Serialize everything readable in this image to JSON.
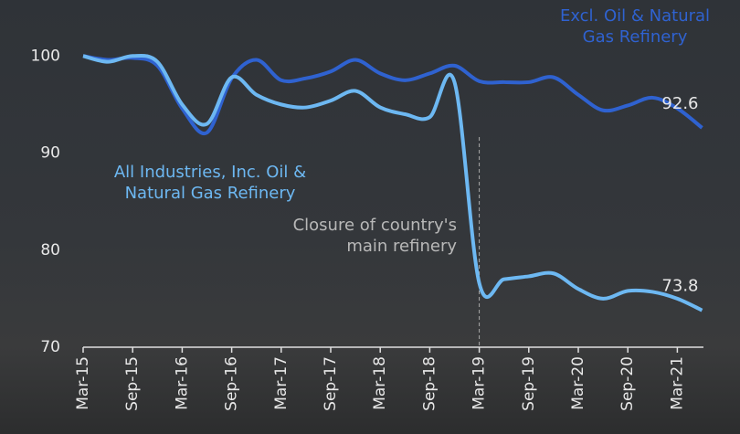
{
  "chart_data": {
    "type": "line",
    "categories": [
      "Mar-15",
      null,
      "Sep-15",
      null,
      "Mar-16",
      null,
      "Sep-16",
      null,
      "Mar-17",
      null,
      "Sep-17",
      null,
      "Mar-18",
      null,
      "Sep-18",
      null,
      "Mar-19",
      null,
      "Sep-19",
      null,
      "Mar-20",
      null,
      "Sep-20",
      null,
      "Mar-21",
      null
    ],
    "series": [
      {
        "name": "Excl. Oil & Natural Gas Refinery",
        "color": "#2f62d0",
        "values": [
          100,
          99.6,
          99.8,
          99,
          94.6,
          92.1,
          97.7,
          99.6,
          97.5,
          97.7,
          98.4,
          99.6,
          98.2,
          97.5,
          98.2,
          99,
          97.4,
          97.3,
          97.3,
          97.8,
          96,
          94.4,
          94.9,
          95.7,
          94.6,
          92.6
        ]
      },
      {
        "name": "All Industries, Inc. Oil & Natural Gas Refinery",
        "color": "#6db8f2",
        "values": [
          100,
          99.4,
          100,
          99.4,
          95,
          93,
          97.8,
          96,
          95,
          94.7,
          95.4,
          96.4,
          94.7,
          94,
          93.7,
          97.3,
          76.6,
          77,
          77.3,
          77.6,
          76,
          75,
          75.8,
          75.7,
          75,
          73.8
        ]
      }
    ],
    "annotation": "Closure of country's main refinery",
    "ylim": [
      70,
      102
    ],
    "yticks": [
      70,
      80,
      90,
      100
    ],
    "grid": false
  }
}
